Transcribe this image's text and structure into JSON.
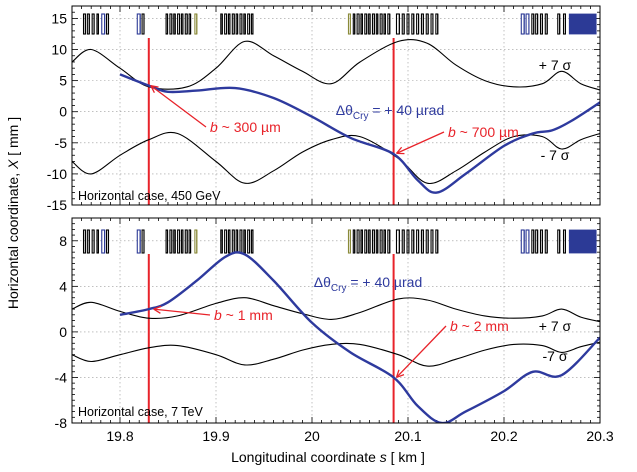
{
  "figure": {
    "ylabel": "Horizontal coordinate, X [ mm ]",
    "xlabel": "Longitudinal coordinate s [ km ]"
  },
  "colors": {
    "trajectory": "#2e3a9e",
    "envelope": "#000000",
    "marker": "#e8232a",
    "element_blue": "#2c3a96",
    "element_olive": "#8a8a3a"
  },
  "chart_data": [
    {
      "type": "line",
      "panel": "top",
      "case_label": "Horizontal case, 450 GeV",
      "xlim": [
        19.75,
        20.3
      ],
      "ylim": [
        -15,
        17
      ],
      "yticks": [
        -15,
        -10,
        -5,
        0,
        5,
        10,
        15
      ],
      "xticks": [
        19.8,
        19.9,
        20.0,
        20.1,
        20.2,
        20.3
      ],
      "xticklabels": [],
      "grid": true,
      "series": [
        {
          "name": "+ 7 σ",
          "kind": "envelope",
          "x": [
            19.75,
            19.77,
            19.8,
            19.83,
            19.87,
            19.9,
            19.93,
            19.96,
            19.99,
            20.02,
            20.05,
            20.09,
            20.12,
            20.15,
            20.18,
            20.21,
            20.24,
            20.26,
            20.28,
            20.3
          ],
          "y": [
            8.0,
            10.0,
            7.0,
            4.0,
            4.0,
            7.0,
            11.3,
            9.0,
            6.5,
            4.5,
            8.0,
            11.3,
            11.0,
            7.5,
            5.0,
            4.0,
            4.5,
            6.5,
            4.5,
            3.5
          ]
        },
        {
          "name": "- 7 σ",
          "kind": "envelope",
          "x": [
            19.75,
            19.77,
            19.8,
            19.83,
            19.86,
            19.9,
            19.93,
            19.96,
            19.99,
            20.02,
            20.05,
            20.09,
            20.12,
            20.15,
            20.18,
            20.21,
            20.24,
            20.26,
            20.28,
            20.3
          ],
          "y": [
            -8.0,
            -10.0,
            -7.0,
            -4.5,
            -3.5,
            -8.0,
            -11.5,
            -9.5,
            -6.5,
            -4.5,
            -4.0,
            -7.5,
            -11.5,
            -9.5,
            -6.5,
            -4.0,
            -4.0,
            -6.0,
            -4.5,
            -3.5
          ]
        },
        {
          "name": "Δθ_Cry = + 40 µrad",
          "kind": "trajectory",
          "x": [
            19.8,
            19.83,
            19.85,
            19.88,
            19.92,
            19.96,
            20.0,
            20.04,
            20.085,
            20.11,
            20.13,
            20.16,
            20.2,
            20.23,
            20.25,
            20.27,
            20.3
          ],
          "y": [
            6.0,
            4.2,
            3.2,
            3.4,
            3.8,
            2.2,
            -0.8,
            -4.2,
            -6.8,
            -11.0,
            -13.0,
            -10.0,
            -5.5,
            -3.5,
            -3.0,
            -1.5,
            1.5
          ]
        }
      ],
      "markers": [
        {
          "s": 19.83,
          "label_prefix": "b ~ ",
          "label_value": "300 µm"
        },
        {
          "s": 20.085,
          "label_prefix": "b ~ ",
          "label_value": "700 µm"
        }
      ],
      "annotations": {
        "delta_prefix": "Δθ",
        "delta_sub": "Cry",
        "delta_rest": " = + 40 µrad",
        "upper_env": "+ 7 σ",
        "lower_env": "- 7 σ"
      }
    },
    {
      "type": "line",
      "panel": "bottom",
      "case_label": "Horizontal case, 7 TeV",
      "xlim": [
        19.75,
        20.3
      ],
      "ylim": [
        -8,
        10
      ],
      "yticks": [
        -8,
        -4,
        0,
        4,
        8
      ],
      "xticks": [
        19.8,
        19.9,
        20.0,
        20.1,
        20.2,
        20.3
      ],
      "xticklabels": [
        "19.8",
        "19.9",
        "20",
        "20.1",
        "20.2",
        "20.3"
      ],
      "grid": true,
      "series": [
        {
          "name": "+ 7 σ",
          "kind": "envelope",
          "x": [
            19.75,
            19.77,
            19.8,
            19.83,
            19.86,
            19.9,
            19.93,
            19.96,
            19.99,
            20.02,
            20.05,
            20.09,
            20.12,
            20.15,
            20.18,
            20.21,
            20.24,
            20.26,
            20.28,
            20.3
          ],
          "y": [
            2.0,
            2.6,
            1.8,
            1.2,
            1.4,
            2.5,
            3.0,
            2.3,
            1.6,
            1.1,
            1.7,
            2.9,
            2.8,
            2.0,
            1.4,
            1.2,
            1.4,
            2.0,
            1.3,
            0.9
          ]
        },
        {
          "name": "- 7 σ",
          "kind": "envelope",
          "x": [
            19.75,
            19.77,
            19.8,
            19.83,
            19.86,
            19.9,
            19.93,
            19.96,
            19.99,
            20.02,
            20.05,
            20.09,
            20.12,
            20.15,
            20.18,
            20.21,
            20.24,
            20.26,
            20.28,
            20.3
          ],
          "y": [
            -2.0,
            -2.6,
            -2.0,
            -1.4,
            -1.2,
            -2.0,
            -2.9,
            -2.4,
            -1.6,
            -1.1,
            -1.1,
            -2.0,
            -3.0,
            -2.4,
            -1.6,
            -1.1,
            -1.2,
            -1.8,
            -1.3,
            -0.9
          ]
        },
        {
          "name": "Δθ_Cry = + 40 µrad",
          "kind": "trajectory",
          "x": [
            19.8,
            19.83,
            19.85,
            19.88,
            19.91,
            19.93,
            19.96,
            20.0,
            20.04,
            20.085,
            20.11,
            20.135,
            20.16,
            20.2,
            20.23,
            20.26,
            20.3
          ],
          "y": [
            1.5,
            2.0,
            2.6,
            4.5,
            6.6,
            6.8,
            4.5,
            0.8,
            -1.8,
            -4.0,
            -6.5,
            -8.0,
            -7.0,
            -5.2,
            -3.5,
            -3.8,
            -0.5
          ]
        }
      ],
      "markers": [
        {
          "s": 19.83,
          "label_prefix": "b ~ ",
          "label_value": "1 mm"
        },
        {
          "s": 20.085,
          "label_prefix": "b ~ ",
          "label_value": "2 mm"
        }
      ],
      "annotations": {
        "delta_prefix": "Δθ",
        "delta_sub": "Cry",
        "delta_rest": " = + 40 µrad",
        "upper_env": "+ 7 σ",
        "lower_env": "-7 σ"
      }
    }
  ],
  "lattice_elements": [
    {
      "s": 19.762,
      "w": 0.002,
      "c": "black"
    },
    {
      "s": 19.766,
      "w": 0.002,
      "c": "black"
    },
    {
      "s": 19.771,
      "w": 0.002,
      "c": "black"
    },
    {
      "s": 19.776,
      "w": 0.0015,
      "c": "black"
    },
    {
      "s": 19.781,
      "w": 0.003,
      "c": "blue"
    },
    {
      "s": 19.786,
      "w": 0.002,
      "c": "black"
    },
    {
      "s": 19.818,
      "w": 0.003,
      "c": "blue"
    },
    {
      "s": 19.823,
      "w": 0.002,
      "c": "black"
    },
    {
      "s": 19.848,
      "w": 0.0015,
      "c": "black"
    },
    {
      "s": 19.852,
      "w": 0.002,
      "c": "black"
    },
    {
      "s": 19.856,
      "w": 0.0015,
      "c": "black"
    },
    {
      "s": 19.86,
      "w": 0.002,
      "c": "black"
    },
    {
      "s": 19.864,
      "w": 0.0015,
      "c": "black"
    },
    {
      "s": 19.868,
      "w": 0.002,
      "c": "black"
    },
    {
      "s": 19.872,
      "w": 0.0015,
      "c": "black"
    },
    {
      "s": 19.878,
      "w": 0.002,
      "c": "olive"
    },
    {
      "s": 19.905,
      "w": 0.0015,
      "c": "black"
    },
    {
      "s": 19.909,
      "w": 0.002,
      "c": "black"
    },
    {
      "s": 19.913,
      "w": 0.0015,
      "c": "black"
    },
    {
      "s": 19.917,
      "w": 0.002,
      "c": "black"
    },
    {
      "s": 19.921,
      "w": 0.0015,
      "c": "black"
    },
    {
      "s": 19.925,
      "w": 0.002,
      "c": "black"
    },
    {
      "s": 19.929,
      "w": 0.0015,
      "c": "black"
    },
    {
      "s": 19.933,
      "w": 0.002,
      "c": "black"
    },
    {
      "s": 19.937,
      "w": 0.0015,
      "c": "black"
    },
    {
      "s": 20.038,
      "w": 0.002,
      "c": "olive"
    },
    {
      "s": 20.043,
      "w": 0.0015,
      "c": "black"
    },
    {
      "s": 20.047,
      "w": 0.002,
      "c": "black"
    },
    {
      "s": 20.051,
      "w": 0.0015,
      "c": "black"
    },
    {
      "s": 20.055,
      "w": 0.002,
      "c": "black"
    },
    {
      "s": 20.059,
      "w": 0.0015,
      "c": "black"
    },
    {
      "s": 20.063,
      "w": 0.002,
      "c": "black"
    },
    {
      "s": 20.067,
      "w": 0.0015,
      "c": "black"
    },
    {
      "s": 20.071,
      "w": 0.002,
      "c": "black"
    },
    {
      "s": 20.075,
      "w": 0.0015,
      "c": "black"
    },
    {
      "s": 20.079,
      "w": 0.002,
      "c": "black"
    },
    {
      "s": 20.088,
      "w": 0.003,
      "c": "black"
    },
    {
      "s": 20.094,
      "w": 0.002,
      "c": "black"
    },
    {
      "s": 20.099,
      "w": 0.002,
      "c": "black"
    },
    {
      "s": 20.104,
      "w": 0.002,
      "c": "black"
    },
    {
      "s": 20.109,
      "w": 0.002,
      "c": "black"
    },
    {
      "s": 20.114,
      "w": 0.002,
      "c": "black"
    },
    {
      "s": 20.119,
      "w": 0.002,
      "c": "black"
    },
    {
      "s": 20.124,
      "w": 0.002,
      "c": "black"
    },
    {
      "s": 20.129,
      "w": 0.002,
      "c": "black"
    },
    {
      "s": 20.218,
      "w": 0.003,
      "c": "blue"
    },
    {
      "s": 20.223,
      "w": 0.003,
      "c": "blue"
    },
    {
      "s": 20.229,
      "w": 0.002,
      "c": "black"
    },
    {
      "s": 20.233,
      "w": 0.002,
      "c": "black"
    },
    {
      "s": 20.238,
      "w": 0.002,
      "c": "black"
    },
    {
      "s": 20.243,
      "w": 0.002,
      "c": "black"
    },
    {
      "s": 20.256,
      "w": 0.002,
      "c": "black"
    },
    {
      "s": 20.262,
      "w": 0.002,
      "c": "black"
    },
    {
      "s": 20.268,
      "w": 0.028,
      "c": "blue"
    }
  ]
}
